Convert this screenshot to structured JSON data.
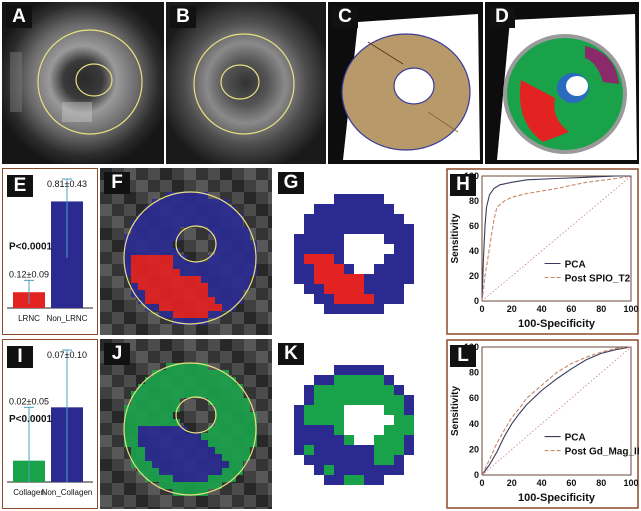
{
  "panels": {
    "A": {
      "label": "A"
    },
    "B": {
      "label": "B"
    },
    "C": {
      "label": "C"
    },
    "D": {
      "label": "D"
    },
    "E": {
      "label": "E",
      "p_value": "P<0.0001",
      "bar1_value": "0.12±0.09",
      "bar2_value": "0.81±0.43",
      "cat1": "LRNC",
      "cat2": "Non_LRNC"
    },
    "F": {
      "label": "F"
    },
    "G": {
      "label": "G"
    },
    "H": {
      "label": "H",
      "ylabel": "Sensitivity",
      "xlabel": "100-Specificity",
      "legend1": "PCA",
      "legend2": "Post SPIO_T2"
    },
    "I": {
      "label": "I",
      "p_value": "P<0.0001",
      "bar1_value": "0.02±0.05",
      "bar2_value": "0.07±0.10",
      "cat1": "Collagen",
      "cat2": "Non_Collagen"
    },
    "J": {
      "label": "J"
    },
    "K": {
      "label": "K"
    },
    "L": {
      "label": "L",
      "ylabel": "Sensitivity",
      "xlabel": "100-Specificity",
      "legend1": "PCA",
      "legend2": "Post Gd_Mag_IR"
    }
  },
  "ticks": [
    "0",
    "20",
    "40",
    "60",
    "80",
    "100"
  ],
  "colors": {
    "red": "#e32222",
    "blue": "#2a2a90",
    "green": "#1aa24a",
    "frame": "#8b4a2a"
  },
  "chart_data": [
    {
      "type": "bar",
      "panel": "E",
      "categories": [
        "LRNC",
        "Non_LRNC"
      ],
      "values": [
        0.12,
        0.81
      ],
      "errors": [
        0.09,
        0.43
      ],
      "ylim": [
        0,
        0.95
      ],
      "annotation": "P<0.0001"
    },
    {
      "type": "line",
      "panel": "H",
      "xlabel": "100-Specificity",
      "ylabel": "Sensitivity",
      "xlim": [
        0,
        100
      ],
      "ylim": [
        0,
        100
      ],
      "series": [
        {
          "name": "PCA",
          "x": [
            0,
            1,
            2,
            3,
            5,
            8,
            12,
            20,
            30,
            50,
            70,
            90,
            100
          ],
          "y": [
            0,
            35,
            60,
            75,
            85,
            90,
            93,
            95,
            97,
            98,
            99,
            100,
            100
          ]
        },
        {
          "name": "Post SPIO_T2",
          "x": [
            0,
            2,
            4,
            6,
            8,
            10,
            15,
            20,
            30,
            50,
            70,
            90,
            100
          ],
          "y": [
            0,
            20,
            35,
            50,
            65,
            75,
            80,
            83,
            86,
            90,
            95,
            98,
            100
          ]
        }
      ]
    },
    {
      "type": "bar",
      "panel": "I",
      "categories": [
        "Collagen",
        "Non_Collagen"
      ],
      "values": [
        0.02,
        0.07
      ],
      "errors": [
        0.05,
        0.1
      ],
      "ylim": [
        0,
        0.12
      ],
      "annotation": "P<0.0001"
    },
    {
      "type": "line",
      "panel": "L",
      "xlabel": "100-Specificity",
      "ylabel": "Sensitivity",
      "xlim": [
        0,
        100
      ],
      "ylim": [
        0,
        100
      ],
      "series": [
        {
          "name": "PCA",
          "x": [
            0,
            5,
            10,
            15,
            20,
            25,
            30,
            40,
            50,
            60,
            70,
            80,
            90,
            100
          ],
          "y": [
            0,
            8,
            18,
            30,
            40,
            48,
            55,
            66,
            75,
            83,
            90,
            95,
            98,
            100
          ]
        },
        {
          "name": "Post Gd_Mag_IR",
          "x": [
            0,
            5,
            10,
            15,
            20,
            25,
            30,
            40,
            50,
            60,
            70,
            80,
            90,
            100
          ],
          "y": [
            0,
            12,
            25,
            35,
            45,
            52,
            60,
            70,
            80,
            87,
            92,
            96,
            99,
            100
          ]
        }
      ]
    }
  ]
}
